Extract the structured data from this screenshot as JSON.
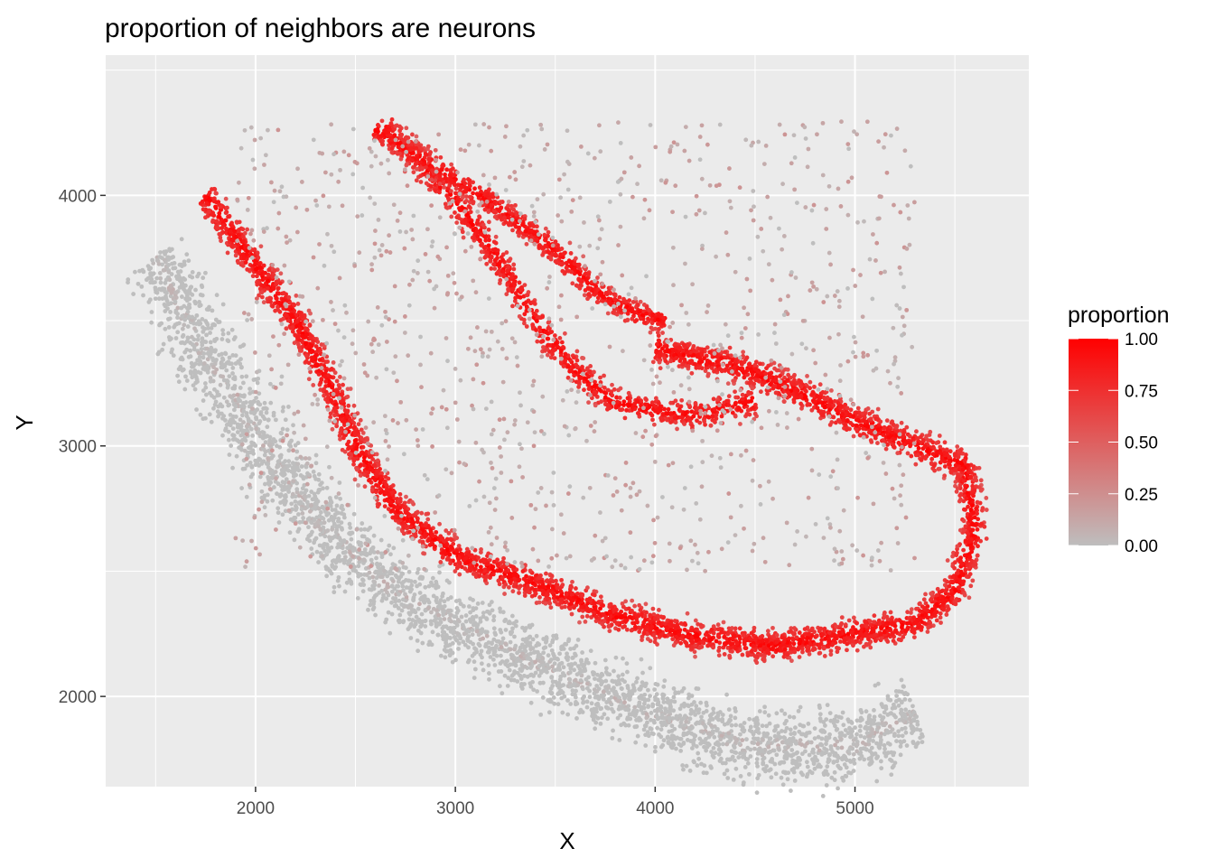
{
  "chart_data": {
    "type": "scatter",
    "title": "proportion of neighbors are neurons",
    "xlabel": "X",
    "ylabel": "Y",
    "xlim": [
      1250,
      5870
    ],
    "ylim": [
      1640,
      4560
    ],
    "x_ticks": [
      2000,
      3000,
      4000,
      5000
    ],
    "x_tick_labels": [
      "2000",
      "3000",
      "4000",
      "5000"
    ],
    "y_ticks": [
      2000,
      3000,
      4000
    ],
    "y_tick_labels": [
      "2000",
      "3000",
      "4000"
    ],
    "grid": true,
    "panel_background": "#ebebeb",
    "color_scale": {
      "low": "#bebebe",
      "high": "#ff0000",
      "domain": [
        0,
        1
      ]
    },
    "legend": {
      "title": "proportion",
      "position": "right",
      "breaks": [
        1.0,
        0.75,
        0.5,
        0.25,
        0.0
      ],
      "labels": [
        "1.00",
        "0.75",
        "0.50",
        "0.25",
        "0.00"
      ]
    },
    "bands": [
      {
        "name": "outer",
        "color_value": 0.02,
        "width": 120,
        "count": 70,
        "path": [
          [
            1500,
            3760
          ],
          [
            1700,
            3420
          ],
          [
            2000,
            3050
          ],
          [
            2300,
            2700
          ],
          [
            2700,
            2420
          ],
          [
            3100,
            2250
          ],
          [
            3500,
            2100
          ],
          [
            4000,
            1920
          ],
          [
            4500,
            1800
          ],
          [
            5000,
            1800
          ],
          [
            5300,
            1940
          ]
        ]
      },
      {
        "name": "band-1",
        "color_value": 0.95,
        "width": 50,
        "count": 60,
        "path": [
          [
            1750,
            4000
          ],
          [
            2000,
            3720
          ],
          [
            2200,
            3500
          ],
          [
            2400,
            3200
          ],
          [
            2500,
            3000
          ],
          [
            2700,
            2750
          ],
          [
            3000,
            2560
          ],
          [
            3400,
            2450
          ],
          [
            3800,
            2320
          ],
          [
            4200,
            2240
          ],
          [
            4600,
            2200
          ],
          [
            5000,
            2250
          ],
          [
            5300,
            2290
          ],
          [
            5500,
            2420
          ],
          [
            5600,
            2660
          ],
          [
            5550,
            2920
          ],
          [
            5300,
            3000
          ],
          [
            5000,
            3100
          ],
          [
            4700,
            3220
          ],
          [
            4400,
            3320
          ],
          [
            4000,
            3390
          ]
        ]
      },
      {
        "name": "band-2",
        "color_value": 0.95,
        "width": 45,
        "count": 40,
        "path": [
          [
            2650,
            4270
          ],
          [
            3000,
            3980
          ],
          [
            3200,
            3760
          ],
          [
            3400,
            3500
          ],
          [
            3600,
            3300
          ],
          [
            3800,
            3170
          ],
          [
            4200,
            3120
          ],
          [
            4500,
            3180
          ]
        ]
      },
      {
        "name": "band-3",
        "color_value": 0.95,
        "width": 40,
        "count": 45,
        "path": [
          [
            2600,
            4260
          ],
          [
            2900,
            4110
          ],
          [
            3200,
            3960
          ],
          [
            3500,
            3780
          ],
          [
            3700,
            3620
          ],
          [
            3900,
            3530
          ],
          [
            4050,
            3500
          ]
        ]
      },
      {
        "name": "fill",
        "color_value": 0.1,
        "area": [
          [
            1900,
            2500
          ],
          [
            5300,
            4300
          ]
        ],
        "count": 90
      }
    ]
  }
}
